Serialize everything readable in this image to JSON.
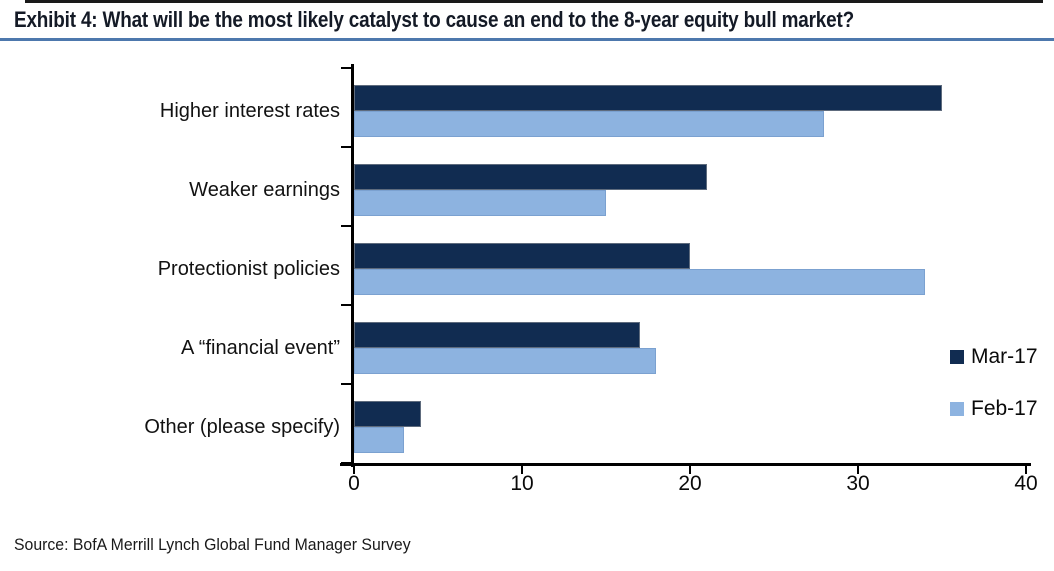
{
  "header": {
    "title": "Exhibit 4: What will be the most likely catalyst to cause an end to the 8-year equity bull market?"
  },
  "chart_data": {
    "type": "bar",
    "orientation": "horizontal",
    "categories": [
      "Higher interest rates",
      "Weaker earnings",
      "Protectionist policies",
      "A “financial event”",
      "Other (please specify)"
    ],
    "series": [
      {
        "name": "Mar-17",
        "color": "#112c51",
        "values": [
          35,
          21,
          20,
          17,
          4
        ]
      },
      {
        "name": "Feb-17",
        "color": "#8db3e0",
        "values": [
          28,
          15,
          34,
          18,
          3
        ]
      }
    ],
    "xlim": [
      0,
      40
    ],
    "x_ticks": [
      "0",
      "10",
      "20",
      "30",
      "40"
    ],
    "xlabel": "",
    "ylabel": "",
    "grid": false,
    "legend_position": "right-middle"
  },
  "footer": {
    "source": "Source: BofA Merrill Lynch Global Fund Manager Survey"
  },
  "colors": {
    "mar_17_bar": "#112c51",
    "feb_17_bar": "#8db3e0",
    "title_underline": "#4d78ad",
    "top_rule": "#1a1a1a",
    "axis": "#000000"
  }
}
